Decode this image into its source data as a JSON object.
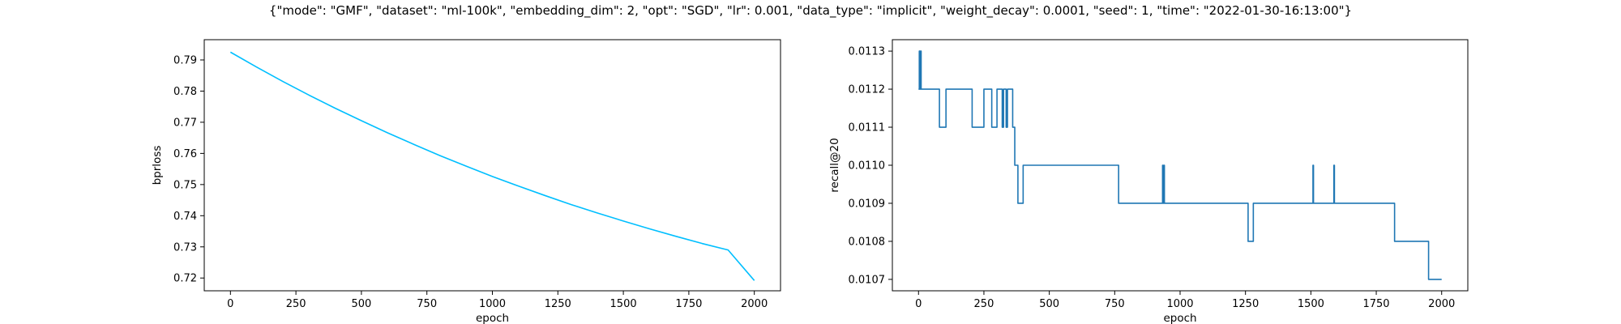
{
  "figure": {
    "suptitle": "{\"mode\": \"GMF\", \"dataset\": \"ml-100k\", \"embedding_dim\": 2, \"opt\": \"SGD\", \"lr\": 0.001, \"data_type\": \"implicit\", \"weight_decay\": 0.0001, \"seed\": 1, \"time\": \"2022-01-30-16:13:00\"}"
  },
  "chart_data": [
    {
      "type": "line",
      "xlabel": "epoch",
      "ylabel": "bprloss",
      "xlim": [
        -100,
        2100
      ],
      "ylim": [
        0.7159,
        0.7965
      ],
      "xticks": [
        0,
        250,
        500,
        750,
        1000,
        1250,
        1500,
        1750,
        2000
      ],
      "yticks": [
        0.72,
        0.73,
        0.74,
        0.75,
        0.76,
        0.77,
        0.78,
        0.79
      ],
      "color": "#00bfff",
      "series": [
        {
          "x": [
            0,
            100,
            200,
            300,
            400,
            500,
            600,
            700,
            800,
            900,
            1000,
            1100,
            1200,
            1300,
            1400,
            1500,
            1600,
            1700,
            1800,
            1900,
            2000
          ],
          "values": [
            0.7925,
            0.7877,
            0.7831,
            0.7787,
            0.7745,
            0.7705,
            0.7666,
            0.7629,
            0.7593,
            0.7559,
            0.7526,
            0.7495,
            0.7465,
            0.7436,
            0.7409,
            0.7383,
            0.7358,
            0.7334,
            0.7311,
            0.729,
            0.7192
          ]
        }
      ]
    },
    {
      "type": "line",
      "step": true,
      "xlabel": "epoch",
      "ylabel": "recall@20",
      "xlim": [
        -100,
        2100
      ],
      "ylim": [
        0.01067,
        0.01133
      ],
      "xticks": [
        0,
        250,
        500,
        750,
        1000,
        1250,
        1500,
        1750,
        2000
      ],
      "yticks": [
        0.0107,
        0.0108,
        0.0109,
        0.011,
        0.0111,
        0.0112,
        0.0113
      ],
      "color": "#1f77b4",
      "series": [
        {
          "x": [
            0,
            3,
            5,
            8,
            10,
            75,
            80,
            100,
            105,
            200,
            205,
            245,
            250,
            275,
            280,
            295,
            300,
            315,
            320,
            325,
            335,
            340,
            360,
            365,
            368,
            370,
            380,
            395,
            400,
            760,
            765,
            930,
            933,
            935,
            938,
            940,
            943,
            1255,
            1260,
            1275,
            1280,
            1505,
            1508,
            1510,
            1515,
            1585,
            1588,
            1590,
            1595,
            1815,
            1820,
            1945,
            1950,
            2000
          ],
          "values": [
            0.0112,
            0.0113,
            0.0112,
            0.0113,
            0.0112,
            0.0112,
            0.0111,
            0.0111,
            0.0112,
            0.0112,
            0.0111,
            0.0111,
            0.0112,
            0.0112,
            0.0111,
            0.0111,
            0.0112,
            0.0112,
            0.0111,
            0.0112,
            0.0111,
            0.0112,
            0.0111,
            0.0111,
            0.011,
            0.011,
            0.0109,
            0.0109,
            0.011,
            0.011,
            0.0109,
            0.0109,
            0.011,
            0.0109,
            0.011,
            0.0109,
            0.0109,
            0.0109,
            0.0108,
            0.0108,
            0.0109,
            0.0109,
            0.011,
            0.0109,
            0.0109,
            0.0109,
            0.011,
            0.0109,
            0.0109,
            0.0109,
            0.0108,
            0.0108,
            0.0107,
            0.0107
          ]
        }
      ]
    }
  ]
}
